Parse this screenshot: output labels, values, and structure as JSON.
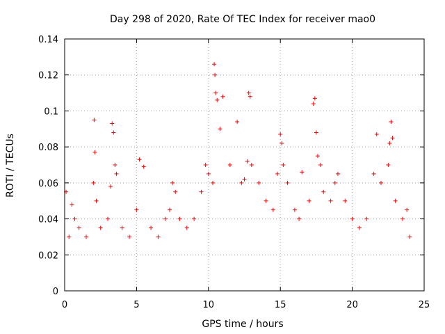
{
  "chart_data": {
    "type": "scatter",
    "title": "Day 298 of 2020, Rate Of TEC Index for receiver mao0",
    "xlabel": "GPS time / hours",
    "ylabel": "ROTI / TECUs",
    "xlim": [
      0,
      25
    ],
    "ylim": [
      0,
      0.14
    ],
    "x_ticks": [
      0,
      5,
      10,
      15,
      20,
      25
    ],
    "x_tick_labels": [
      "0",
      "5",
      "10",
      "15",
      "20",
      "25"
    ],
    "y_ticks": [
      0,
      0.02,
      0.04,
      0.06,
      0.08,
      0.1,
      0.12,
      0.14
    ],
    "y_tick_labels": [
      "0",
      "0.02",
      "0.04",
      "0.06",
      "0.08",
      "0.1",
      "0.12",
      "0.14"
    ],
    "grid": true,
    "marker": "+",
    "colors": {
      "series": "#ff0000",
      "grid": "#a0a0a0",
      "axis": "#000000"
    },
    "series": [
      {
        "x": [
          0.1,
          0.3,
          0.5,
          0.7,
          1.0,
          1.5,
          2.0,
          2.05,
          2.1,
          2.2,
          2.5,
          3.0,
          3.2,
          3.3,
          3.4,
          3.5,
          3.6,
          4.0,
          4.5,
          5.0,
          5.2,
          5.5,
          6.0,
          6.5,
          7.0,
          7.3,
          7.5,
          7.7,
          8.0,
          8.5,
          9.0,
          9.5,
          9.8,
          10.0,
          10.3,
          10.4,
          10.45,
          10.5,
          10.6,
          10.8,
          11.0,
          11.5,
          12.0,
          12.3,
          12.5,
          12.7,
          12.8,
          12.9,
          13.0,
          13.5,
          14.0,
          14.5,
          14.8,
          15.0,
          15.1,
          15.2,
          15.5,
          16.0,
          16.3,
          16.5,
          17.0,
          17.3,
          17.4,
          17.5,
          17.6,
          17.8,
          18.0,
          18.5,
          18.8,
          19.0,
          19.5,
          20.0,
          20.5,
          21.0,
          21.5,
          21.7,
          22.0,
          22.5,
          22.6,
          22.7,
          22.8,
          23.0,
          23.5,
          23.8,
          24.0
        ],
        "y": [
          0.055,
          0.03,
          0.048,
          0.04,
          0.035,
          0.03,
          0.06,
          0.095,
          0.077,
          0.05,
          0.035,
          0.04,
          0.058,
          0.093,
          0.088,
          0.07,
          0.065,
          0.035,
          0.03,
          0.045,
          0.073,
          0.069,
          0.035,
          0.03,
          0.04,
          0.045,
          0.06,
          0.055,
          0.04,
          0.035,
          0.04,
          0.055,
          0.07,
          0.065,
          0.06,
          0.126,
          0.12,
          0.11,
          0.106,
          0.09,
          0.108,
          0.07,
          0.094,
          0.06,
          0.062,
          0.072,
          0.11,
          0.108,
          0.07,
          0.06,
          0.05,
          0.045,
          0.065,
          0.087,
          0.082,
          0.07,
          0.06,
          0.045,
          0.04,
          0.066,
          0.05,
          0.104,
          0.107,
          0.088,
          0.075,
          0.07,
          0.055,
          0.05,
          0.06,
          0.065,
          0.05,
          0.04,
          0.035,
          0.04,
          0.065,
          0.087,
          0.06,
          0.07,
          0.082,
          0.094,
          0.085,
          0.05,
          0.04,
          0.045,
          0.03
        ]
      }
    ]
  }
}
